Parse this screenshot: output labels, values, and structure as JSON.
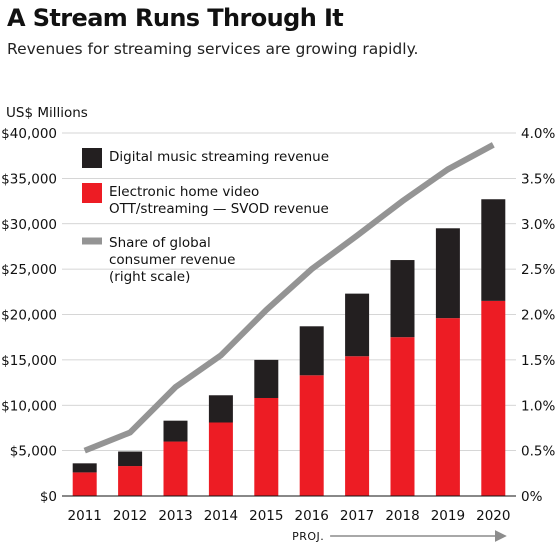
{
  "title": "A Stream Runs Through It",
  "subtitle": "Revenues for streaming services are growing rapidly.",
  "chart_data": {
    "type": "bar",
    "stacked": true,
    "categories": [
      "2011",
      "2012",
      "2013",
      "2014",
      "2015",
      "2016",
      "2017",
      "2018",
      "2019",
      "2020"
    ],
    "series": [
      {
        "name": "Electronic home video OTT/streaming — SVOD revenue",
        "kind": "bar",
        "axis": "left",
        "color": "#ed1c24",
        "values": [
          2600,
          3300,
          6000,
          8100,
          10800,
          13300,
          15400,
          17500,
          19600,
          21500
        ]
      },
      {
        "name": "Digital music streaming revenue",
        "kind": "bar",
        "axis": "left",
        "color": "#231f20",
        "values": [
          1000,
          1600,
          2300,
          3000,
          4200,
          5400,
          6900,
          8500,
          9900,
          11200
        ]
      },
      {
        "name": "Share of global consumer revenue (right scale)",
        "kind": "line",
        "axis": "right",
        "color": "#949494",
        "values": [
          0.5,
          0.7,
          1.2,
          1.55,
          2.05,
          2.5,
          2.87,
          3.25,
          3.6,
          3.87
        ]
      }
    ],
    "ylabel": "US$ Millions",
    "ylim": [
      0,
      40000
    ],
    "y_ticks": [
      "$0",
      "$5,000",
      "$10,000",
      "$15,000",
      "$20,000",
      "$25,000",
      "$30,000",
      "$35,000",
      "$40,000"
    ],
    "y2lim": [
      0,
      4.0
    ],
    "y2_ticks": [
      "0%",
      "0.5%",
      "1.0%",
      "1.5%",
      "2.0%",
      "2.5%",
      "3.0%",
      "3.5%",
      "4.0%"
    ],
    "legend": {
      "placement": "top-left",
      "entries": [
        {
          "lines": [
            "Digital music streaming revenue"
          ],
          "color": "#231f20",
          "swatch": "box"
        },
        {
          "lines": [
            "Electronic home video",
            "OTT/streaming — SVOD revenue"
          ],
          "color": "#ed1c24",
          "swatch": "box"
        },
        {
          "lines": [
            "Share of global",
            "consumer revenue",
            "(right scale)"
          ],
          "color": "#949494",
          "swatch": "line"
        }
      ]
    },
    "annotation": "PROJ.",
    "projected_from": "2017",
    "grid": true
  }
}
